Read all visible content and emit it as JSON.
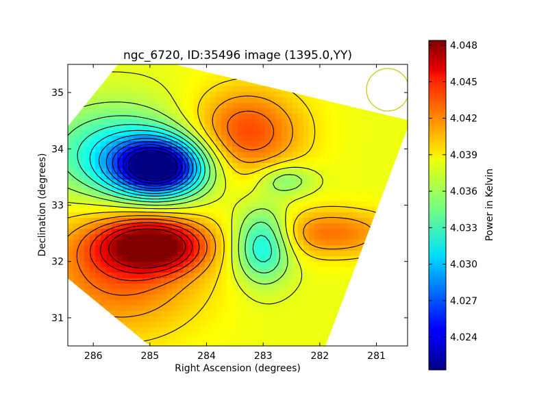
{
  "chart_data": {
    "type": "heatmap",
    "title": "ngc_6720, ID:35496 image (1395.0,YY)",
    "xlabel": "Right Ascension (degrees)",
    "ylabel": "Declination (degrees)",
    "xlim": [
      286.45,
      280.45
    ],
    "ylim": [
      30.5,
      35.5
    ],
    "x_ticks": [
      {
        "value": 286,
        "label": "286"
      },
      {
        "value": 285,
        "label": "285"
      },
      {
        "value": 284,
        "label": "284"
      },
      {
        "value": 283,
        "label": "283"
      },
      {
        "value": 282,
        "label": "282"
      },
      {
        "value": 281,
        "label": "281"
      }
    ],
    "y_ticks": [
      {
        "value": 31,
        "label": "31"
      },
      {
        "value": 32,
        "label": "32"
      },
      {
        "value": 33,
        "label": "33"
      },
      {
        "value": 34,
        "label": "34"
      },
      {
        "value": 35,
        "label": "35"
      }
    ],
    "colormap": "jet",
    "colorbar": {
      "label": "Power in Kelvin",
      "range": [
        4.0213,
        4.0484
      ],
      "ticks": [
        {
          "value": 4.024,
          "label": "4.024"
        },
        {
          "value": 4.027,
          "label": "4.027"
        },
        {
          "value": 4.03,
          "label": "4.030"
        },
        {
          "value": 4.033,
          "label": "4.033"
        },
        {
          "value": 4.036,
          "label": "4.036"
        },
        {
          "value": 4.039,
          "label": "4.039"
        },
        {
          "value": 4.042,
          "label": "4.042"
        },
        {
          "value": 4.045,
          "label": "4.045"
        },
        {
          "value": 4.048,
          "label": "4.048"
        }
      ]
    },
    "footprint_corners": [
      [
        285.4,
        35.7
      ],
      [
        280.4,
        34.5
      ],
      [
        281.9,
        30.5
      ],
      [
        285.0,
        30.5
      ],
      [
        286.45,
        31.7
      ],
      [
        286.45,
        34.4
      ]
    ],
    "features": [
      {
        "kind": "minimum",
        "ra": 284.85,
        "dec": 33.67,
        "value": 4.0215
      },
      {
        "kind": "maximum",
        "ra": 284.95,
        "dec": 32.28,
        "value": 4.048
      },
      {
        "kind": "maximum",
        "ra": 283.3,
        "dec": 34.3,
        "value": 4.0432
      },
      {
        "kind": "maximum",
        "ra": 281.8,
        "dec": 32.5,
        "value": 4.042
      },
      {
        "kind": "minimum",
        "ra": 283.0,
        "dec": 32.3,
        "value": 4.031
      },
      {
        "kind": "minimum",
        "ra": 282.6,
        "dec": 33.45,
        "value": 4.0345
      }
    ],
    "beam_circle": {
      "ra": 280.8,
      "dec": 35.05,
      "color": "#c8c814"
    },
    "contour_color": "#000000",
    "grid": false,
    "legend": "none"
  }
}
